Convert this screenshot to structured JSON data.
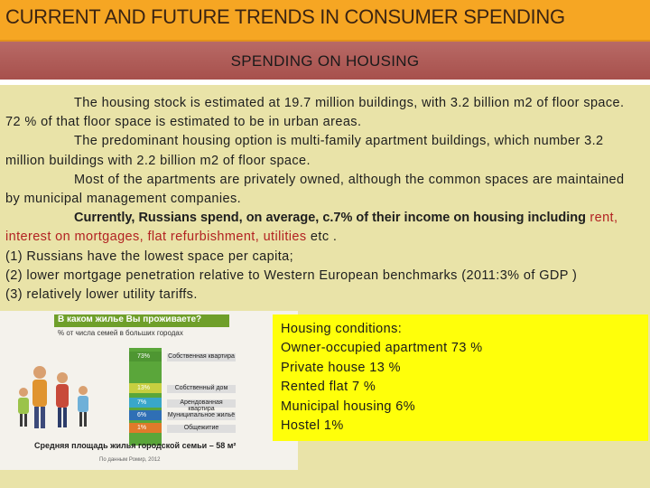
{
  "header": {
    "title": "CURRENT AND FUTURE TRENDS IN CONSUMER SPENDING",
    "subtitle": "SPENDING ON HOUSING"
  },
  "body": {
    "p1": "The housing stock is estimated at 19.7 million buildings, with 3.2 billion m2 of floor space. 72 % of that floor space is estimated to be in urban areas.",
    "p2": "The predominant housing option is multi-family apartment buildings, which number 3.2 million buildings with 2.2 billion m2 of floor space.",
    "p3": "Most of the apartments are privately owned, although the common spaces are maintained by municipal management companies.",
    "p4_bold": "Currently, Russians spend, on average, c.7% of their income on housing including",
    "p4_red": "rent, interest on mortgages, flat refurbishment, utilities",
    "p4_tail": " etc .",
    "l1": "(1) Russians have the lowest space per capita;",
    "l2": "(2) lower mortgage penetration relative to Western European benchmarks (2011:3% of GDP )",
    "l3": "(3) relatively lower utility tariffs."
  },
  "infographic": {
    "header": "В каком жилье Вы проживаете?",
    "sub": "% от числа семей в больших городах",
    "rows": [
      {
        "pct": "73%",
        "label": "Собственная квартира"
      },
      {
        "pct": "13%",
        "label": "Собственный дом"
      },
      {
        "pct": "7%",
        "label": "Арендованная квартира"
      },
      {
        "pct": "6%",
        "label": "Муниципальное жильё"
      },
      {
        "pct": "1%",
        "label": "Общежитие"
      }
    ],
    "footer": "Средняя площадь жилья городской семьи – 58 м²",
    "source": "По данным Ромир, 2012"
  },
  "conditions": {
    "heading": "Housing conditions:",
    "items": [
      "Owner-occupied apartment 73 %",
      "Private house 13 %",
      "Rented flat 7 %",
      "Municipal housing 6%",
      "Hostel 1%"
    ]
  },
  "colors": {
    "title_bar": "#f6a623",
    "subtitle_bar": "#a7504c",
    "panel": "#e9e3a8",
    "highlight_box": "#ffff0a",
    "emphasis_red": "#b22222"
  }
}
